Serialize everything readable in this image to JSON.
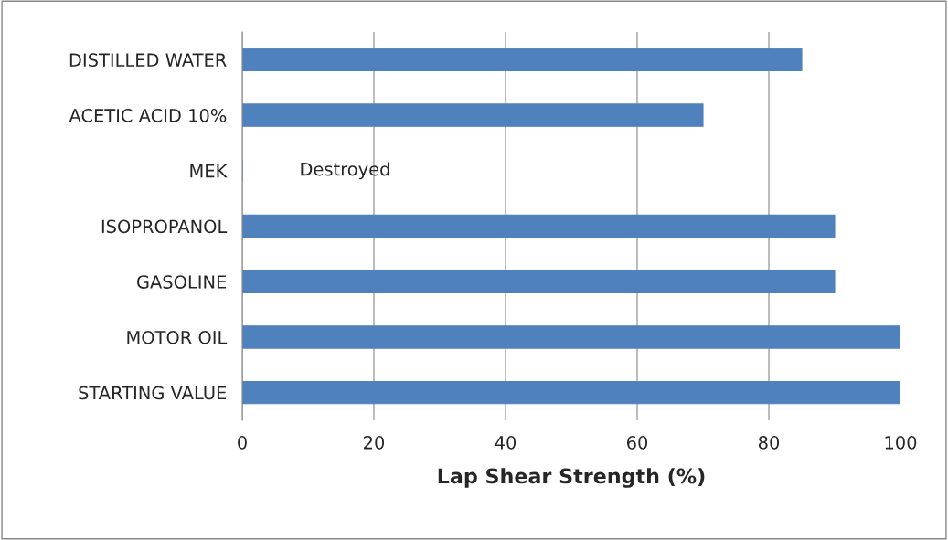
{
  "chart_data": {
    "type": "bar",
    "orientation": "horizontal",
    "categories": [
      "DISTILLED WATER",
      "ACETIC ACID 10%",
      "MEK",
      "ISOPROPANOL",
      "GASOLINE",
      "MOTOR OIL",
      "STARTING VALUE"
    ],
    "values": [
      85,
      70,
      0,
      90,
      90,
      100,
      100
    ],
    "color": "#4f81bd",
    "xlabel": "Lap Shear Strength (%)",
    "xlim": [
      0,
      100
    ],
    "xticks": [
      0,
      20,
      40,
      60,
      80,
      100
    ],
    "grid": "x",
    "annotations": [
      "Destroyed"
    ]
  }
}
